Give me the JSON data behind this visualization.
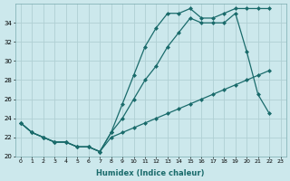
{
  "xlabel": "Humidex (Indice chaleur)",
  "background_color": "#cce8ec",
  "grid_color": "#b0d0d4",
  "line_color": "#1a6b6b",
  "series": {
    "line1": {
      "x": [
        0,
        1,
        2,
        3,
        4,
        5,
        6,
        7,
        8,
        9,
        10,
        11,
        12,
        13,
        14,
        15,
        16,
        17,
        18,
        19,
        20,
        21,
        22
      ],
      "y": [
        23.5,
        22.5,
        22.0,
        21.5,
        21.5,
        21.0,
        21.0,
        20.5,
        22.5,
        24.0,
        26.0,
        28.0,
        29.5,
        31.5,
        33.0,
        34.5,
        34.0,
        34.0,
        34.0,
        35.0,
        31.0,
        26.5,
        24.5
      ]
    },
    "line2": {
      "x": [
        0,
        1,
        2,
        3,
        4,
        5,
        6,
        7,
        8,
        9,
        10,
        11,
        12,
        13,
        14,
        15,
        16,
        17,
        18,
        19,
        20,
        21,
        22
      ],
      "y": [
        23.5,
        22.5,
        22.0,
        21.5,
        21.5,
        21.0,
        21.0,
        20.5,
        22.5,
        25.5,
        28.5,
        31.5,
        33.5,
        35.0,
        35.0,
        35.5,
        34.5,
        34.5,
        35.0,
        35.5,
        35.5,
        35.5,
        35.5
      ]
    },
    "line3": {
      "x": [
        0,
        1,
        2,
        3,
        4,
        5,
        6,
        7,
        8,
        9,
        10,
        11,
        12,
        13,
        14,
        15,
        16,
        17,
        18,
        19,
        20,
        21,
        22
      ],
      "y": [
        23.5,
        22.5,
        22.0,
        21.5,
        21.5,
        21.0,
        21.0,
        20.5,
        22.0,
        22.5,
        23.0,
        23.5,
        24.0,
        24.5,
        25.0,
        25.5,
        26.0,
        26.5,
        27.0,
        27.5,
        28.0,
        28.5,
        29.0
      ]
    }
  },
  "ylim": [
    20,
    36
  ],
  "xlim": [
    -0.5,
    23.5
  ],
  "yticks": [
    20,
    22,
    24,
    26,
    28,
    30,
    32,
    34
  ],
  "xticks": [
    0,
    1,
    2,
    3,
    4,
    5,
    6,
    7,
    8,
    9,
    10,
    11,
    12,
    13,
    14,
    15,
    16,
    17,
    18,
    19,
    20,
    21,
    22,
    23
  ],
  "xtick_labels": [
    "0",
    "1",
    "2",
    "3",
    "4",
    "5",
    "6",
    "7",
    "8",
    "9",
    "10",
    "11",
    "12",
    "13",
    "14",
    "15",
    "16",
    "17",
    "18",
    "19",
    "20",
    "21",
    "22",
    "23"
  ],
  "marker": "D",
  "marker_size": 2.0,
  "linewidth": 0.9,
  "xlabel_fontsize": 6,
  "ytick_fontsize": 5,
  "xtick_fontsize": 4.5
}
